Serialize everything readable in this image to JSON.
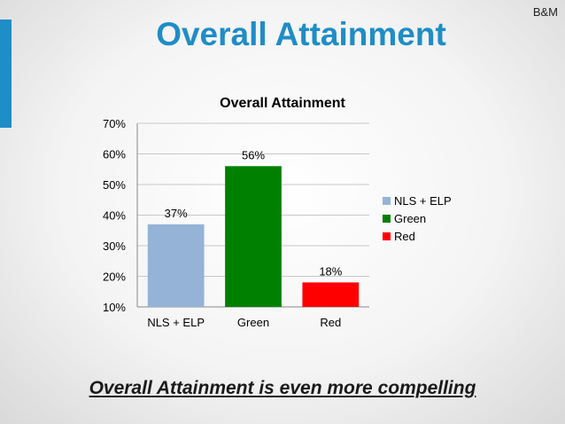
{
  "header": {
    "slide_title": "Overall Attainment",
    "corner_tag": "B&M",
    "accent_color": "#1f8dc6"
  },
  "footer": {
    "statement": "Overall Attainment is even more compelling"
  },
  "chart_data": {
    "type": "bar",
    "title": "Overall Attainment",
    "categories": [
      "NLS + ELP",
      "Green",
      "Red"
    ],
    "values": [
      37,
      56,
      18
    ],
    "value_labels": [
      "37%",
      "56%",
      "18%"
    ],
    "colors": [
      "#95b3d7",
      "#008000",
      "#ff0000"
    ],
    "ylim": [
      10,
      70
    ],
    "yticks": [
      10,
      20,
      30,
      40,
      50,
      60,
      70
    ],
    "ytick_labels": [
      "10%",
      "20%",
      "30%",
      "40%",
      "50%",
      "60%",
      "70%"
    ],
    "grid": true,
    "legend": {
      "placement": "right",
      "entries": [
        "NLS + ELP",
        "Green",
        "Red"
      ]
    },
    "xlabel": "",
    "ylabel": ""
  }
}
